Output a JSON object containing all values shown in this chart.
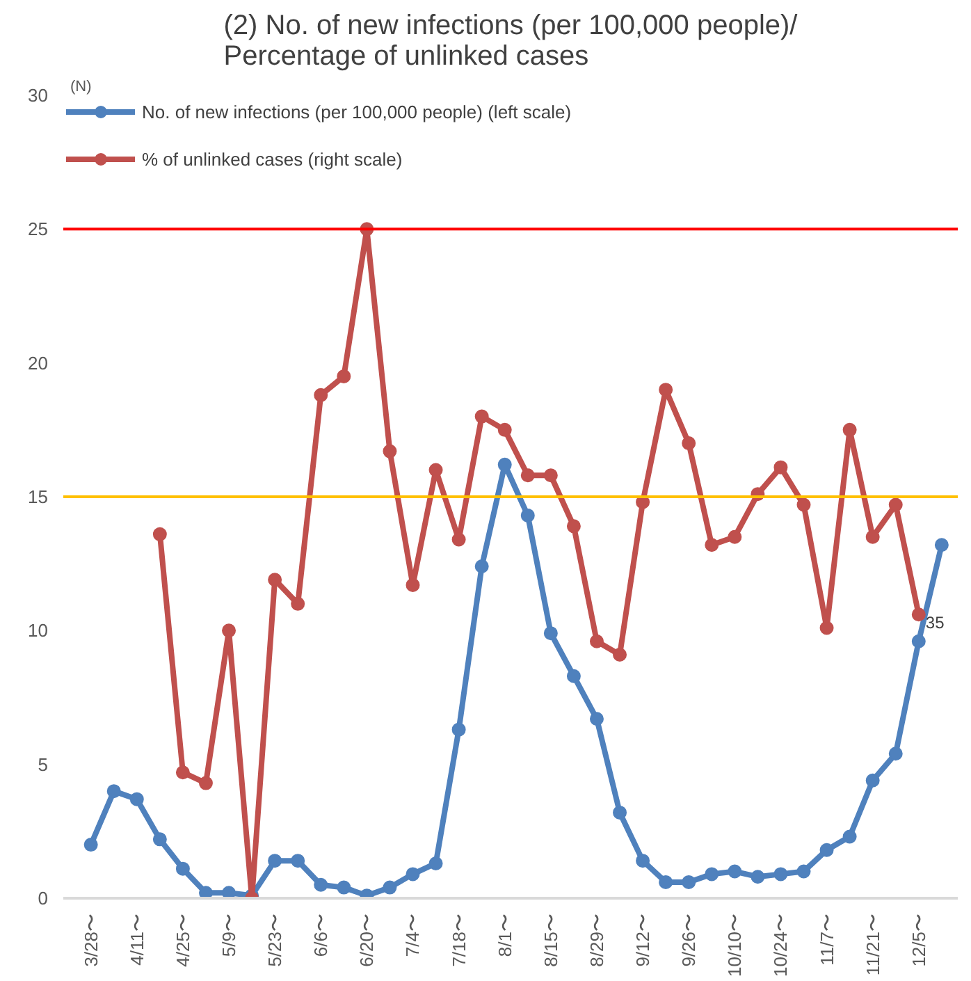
{
  "chart_data": {
    "type": "line",
    "title": "(2) No. of new infections (per 100,000 people)/\nPercentage of unlinked cases",
    "ylabel": "(N)",
    "categories": [
      "3/28〜",
      null,
      "4/11〜",
      null,
      "4/25〜",
      null,
      "5/9〜",
      null,
      "5/23〜",
      null,
      "6/6〜",
      null,
      "6/20〜",
      null,
      "7/4〜",
      null,
      "7/18〜",
      null,
      "8/1〜",
      null,
      "8/15〜",
      null,
      "8/29〜",
      null,
      "9/12〜",
      null,
      "9/26〜",
      null,
      "10/10〜",
      null,
      "10/24〜",
      null,
      "11/7〜",
      null,
      "11/21〜",
      null,
      "12/5〜",
      null
    ],
    "series": [
      {
        "name": "No. of new infections (per 100,000 people) (left scale)",
        "color": "#4f81bd",
        "values": [
          2.0,
          4.0,
          3.7,
          2.2,
          1.1,
          0.2,
          0.2,
          0.1,
          1.4,
          1.4,
          0.5,
          0.4,
          0.1,
          0.4,
          0.9,
          1.3,
          6.3,
          12.4,
          16.2,
          14.3,
          9.9,
          8.3,
          6.7,
          3.2,
          1.4,
          0.6,
          0.6,
          0.9,
          1.0,
          0.8,
          0.9,
          1.0,
          1.8,
          2.3,
          4.4,
          5.4,
          9.6,
          13.2
        ]
      },
      {
        "name": "% of unlinked cases (right scale)",
        "color": "#c0504d",
        "values": [
          null,
          null,
          null,
          13.6,
          4.7,
          4.3,
          10.0,
          0,
          11.9,
          11.0,
          18.8,
          19.5,
          25.0,
          16.7,
          11.7,
          16.0,
          13.4,
          18.0,
          17.5,
          15.8,
          15.8,
          13.9,
          9.6,
          9.1,
          14.8,
          19.0,
          17.0,
          13.2,
          13.5,
          15.1,
          16.1,
          14.7,
          10.1,
          17.5,
          13.5,
          14.7,
          10.6,
          null
        ]
      }
    ],
    "ylim": [
      0,
      30
    ],
    "yticks": [
      0,
      5,
      10,
      15,
      20,
      25,
      30
    ],
    "ref_lines": [
      {
        "axis": "y",
        "value": 25,
        "color": "#ff0000"
      },
      {
        "axis": "y",
        "value": 15,
        "color": "#ffc000"
      }
    ],
    "annotations": [
      {
        "text": "35",
        "x": "12/5〜",
        "y": 10.6
      }
    ],
    "marker": "circle",
    "legend": "top left",
    "grid": false
  }
}
